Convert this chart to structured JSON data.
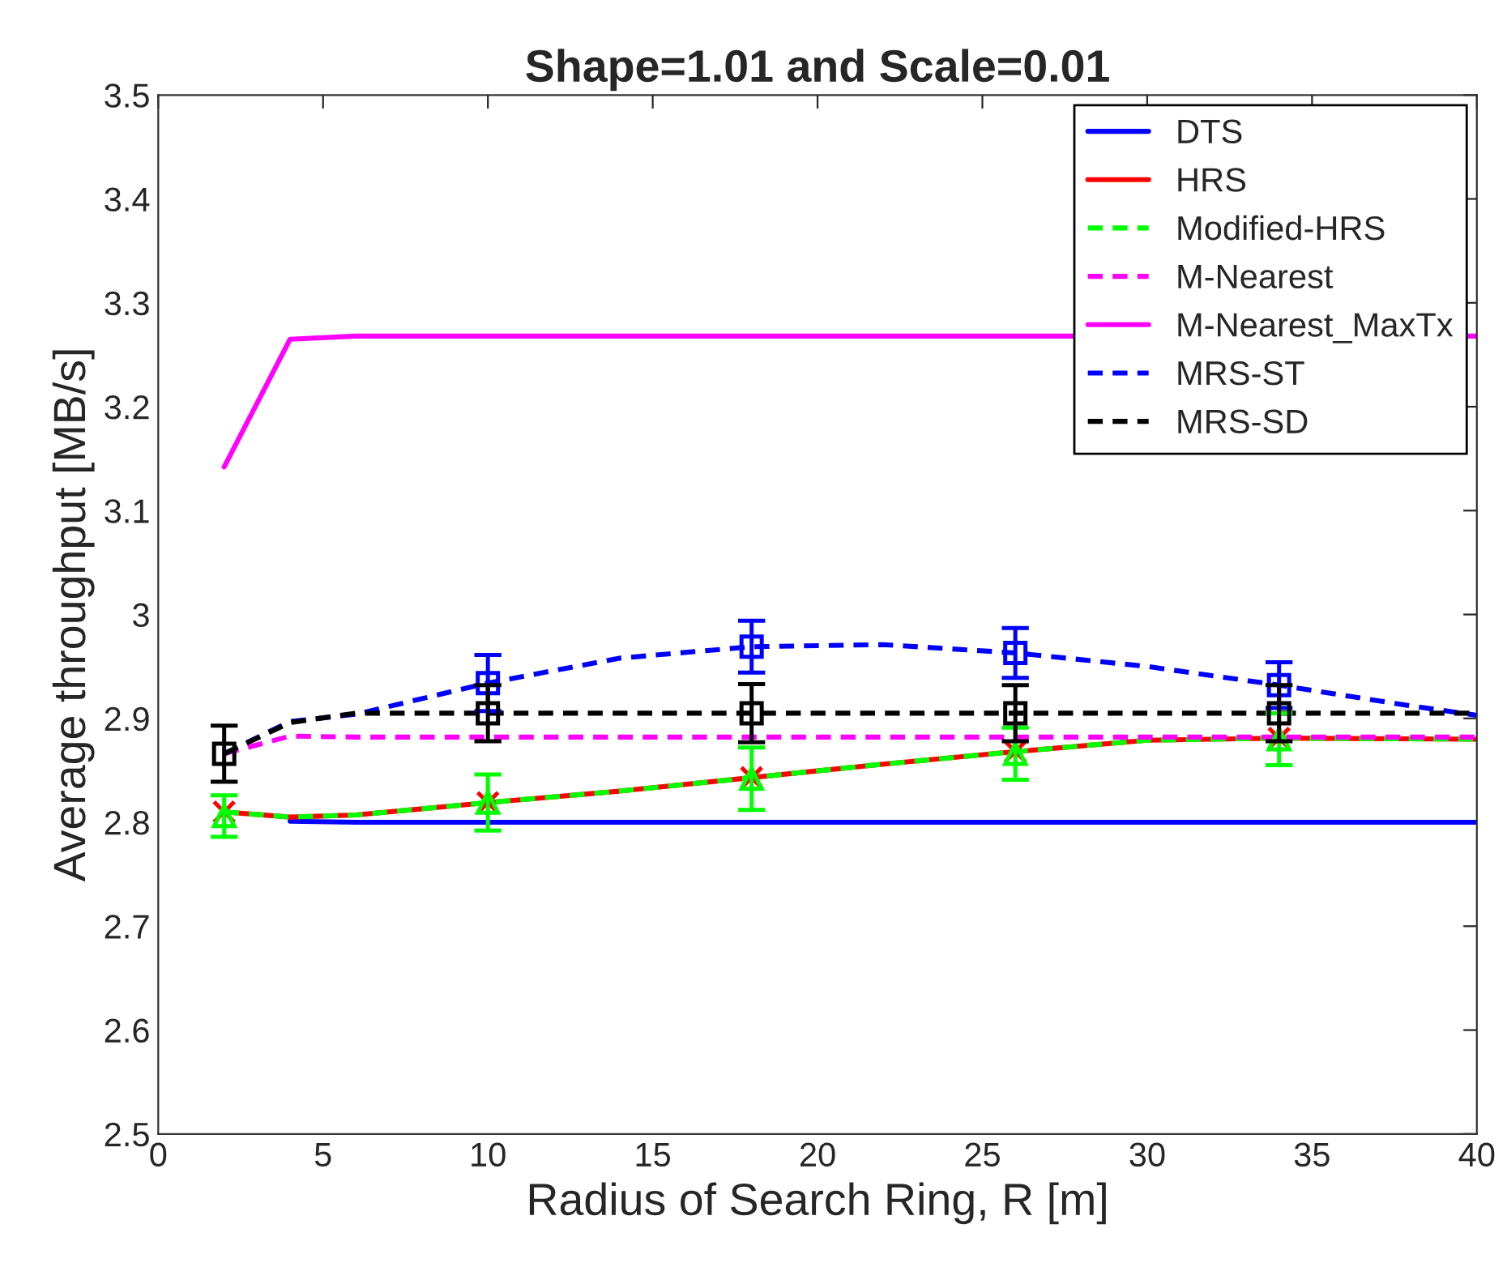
{
  "chart_data": {
    "type": "line",
    "title": "Shape=1.01 and Scale=0.01",
    "xlabel": "Radius of Search Ring, R [m]",
    "ylabel": "Average throughput [MB/s]",
    "xlim": [
      0,
      40
    ],
    "xticks": [
      0,
      5,
      10,
      15,
      20,
      25,
      30,
      35,
      40
    ],
    "ylim": [
      2.5,
      3.5
    ],
    "yticks": [
      2.5,
      2.6,
      2.7,
      2.8,
      2.9,
      3,
      3.1,
      3.2,
      3.3,
      3.4,
      3.5
    ],
    "grid": false,
    "legend": "top right",
    "series": [
      {
        "name": "DTS",
        "color": "#0000ff",
        "line_style": "solid",
        "x": [
          4,
          6,
          10,
          18,
          26,
          34,
          40
        ],
        "values": [
          2.801,
          2.8,
          2.8,
          2.8,
          2.8,
          2.8,
          2.8
        ]
      },
      {
        "name": "HRS",
        "color": "#ff0000",
        "line_style": "solid",
        "x": [
          2,
          4,
          6,
          10,
          14,
          18,
          22,
          26,
          30,
          34,
          40
        ],
        "values": [
          2.81,
          2.805,
          2.807,
          2.819,
          2.83,
          2.843,
          2.856,
          2.868,
          2.879,
          2.881,
          2.88
        ]
      },
      {
        "name": "Modified-HRS",
        "color": "#00ff00",
        "line_style": "dashed",
        "x": [
          2,
          4,
          6,
          10,
          14,
          18,
          22,
          26,
          30,
          34,
          40
        ],
        "values": [
          2.81,
          2.805,
          2.807,
          2.819,
          2.83,
          2.843,
          2.856,
          2.868,
          2.879,
          2.881,
          2.88
        ]
      },
      {
        "name": "M-Nearest",
        "color": "#ff00ff",
        "line_style": "dashed",
        "x": [
          2,
          4,
          6,
          40
        ],
        "values": [
          2.866,
          2.883,
          2.882,
          2.882
        ]
      },
      {
        "name": "M-Nearest_MaxTx",
        "color": "#ff00ff",
        "line_style": "solid",
        "x": [
          2,
          4,
          6,
          40
        ],
        "values": [
          3.142,
          3.265,
          3.268,
          3.268
        ]
      },
      {
        "name": "MRS-ST",
        "color": "#0000ff",
        "line_style": "dashed",
        "x": [
          2,
          4,
          6,
          10,
          14,
          18,
          22,
          26,
          30,
          34,
          38,
          40
        ],
        "values": [
          2.866,
          2.897,
          2.904,
          2.934,
          2.958,
          2.969,
          2.971,
          2.963,
          2.95,
          2.932,
          2.912,
          2.903
        ]
      },
      {
        "name": "MRS-SD",
        "color": "#000000",
        "line_style": "dashed",
        "x": [
          2,
          4,
          6,
          10,
          18,
          26,
          34,
          40
        ],
        "values": [
          2.866,
          2.896,
          2.905,
          2.905,
          2.905,
          2.905,
          2.905,
          2.905
        ]
      },
      {
        "type": "scatter",
        "color": "#ff0000",
        "marker": "cross",
        "x": [
          2,
          10,
          18,
          26,
          34
        ],
        "values": [
          2.81,
          2.819,
          2.843,
          2.868,
          2.881
        ]
      },
      {
        "type": "scatter",
        "color": "#00ff00",
        "marker": "triangle",
        "x": [
          2,
          10,
          18,
          26,
          34
        ],
        "values": [
          2.806,
          2.819,
          2.842,
          2.866,
          2.88
        ],
        "errors": [
          0.02,
          0.027,
          0.03,
          0.025,
          0.025
        ]
      },
      {
        "type": "scatter",
        "color": "#0000ff",
        "marker": "square",
        "x": [
          10,
          18,
          26,
          34
        ],
        "values": [
          2.934,
          2.969,
          2.963,
          2.932
        ],
        "errors": [
          0.027,
          0.025,
          0.024,
          0.022
        ]
      },
      {
        "type": "scatter",
        "color": "#000000",
        "marker": "square",
        "x": [
          2,
          10,
          18,
          26,
          34
        ],
        "values": [
          2.866,
          2.905,
          2.905,
          2.905,
          2.905
        ],
        "errors": [
          0.027,
          0.027,
          0.028,
          0.027,
          0.027
        ]
      }
    ]
  }
}
